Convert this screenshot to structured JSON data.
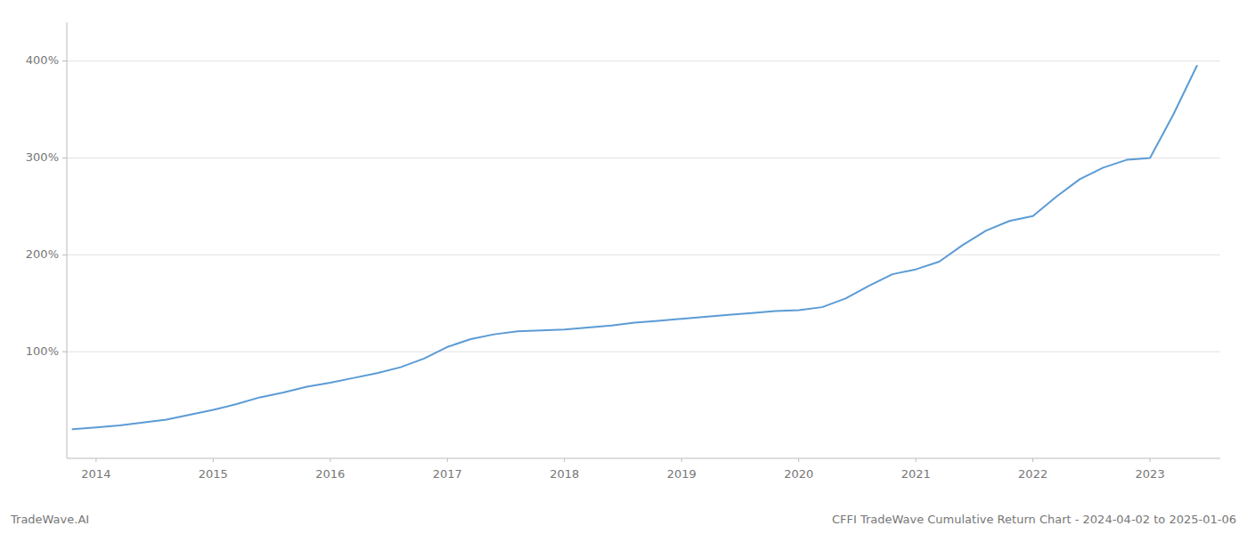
{
  "chart_data": {
    "type": "line",
    "title": "CFFI TradeWave Cumulative Return Chart - 2024-04-02 to 2025-01-06",
    "annotations": [
      "TradeWave.AI"
    ],
    "color": "#5b9bd5",
    "grid": "y",
    "x": [
      2013.8,
      2014.0,
      2014.2,
      2014.4,
      2014.6,
      2014.8,
      2015.0,
      2015.2,
      2015.4,
      2015.6,
      2015.8,
      2016.0,
      2016.2,
      2016.4,
      2016.6,
      2016.8,
      2017.0,
      2017.2,
      2017.4,
      2017.6,
      2017.8,
      2018.0,
      2018.2,
      2018.4,
      2018.6,
      2018.8,
      2019.0,
      2019.2,
      2019.4,
      2019.6,
      2019.8,
      2020.0,
      2020.2,
      2020.4,
      2020.6,
      2020.8,
      2021.0,
      2021.2,
      2021.4,
      2021.6,
      2021.8,
      2022.0,
      2022.2,
      2022.4,
      2022.6,
      2022.8,
      2023.0,
      2023.2,
      2023.4
    ],
    "values": [
      20,
      22,
      24,
      27,
      30,
      35,
      40,
      46,
      53,
      58,
      64,
      68,
      73,
      78,
      84,
      93,
      105,
      113,
      118,
      121,
      122,
      123,
      125,
      127,
      130,
      132,
      134,
      136,
      138,
      140,
      142,
      143,
      146,
      155,
      168,
      180,
      185,
      193,
      210,
      225,
      235,
      240,
      260,
      278,
      290,
      298,
      300,
      345,
      395
    ],
    "xlim": [
      2013.75,
      2023.6
    ],
    "xticks": [
      2014,
      2015,
      2016,
      2017,
      2018,
      2019,
      2020,
      2021,
      2022,
      2023
    ],
    "ylim": [
      -10,
      440
    ],
    "yticks": [
      {
        "value": 100,
        "label": "100%"
      },
      {
        "value": 200,
        "label": "200%"
      },
      {
        "value": 300,
        "label": "300%"
      },
      {
        "value": 400,
        "label": "400%"
      }
    ]
  }
}
